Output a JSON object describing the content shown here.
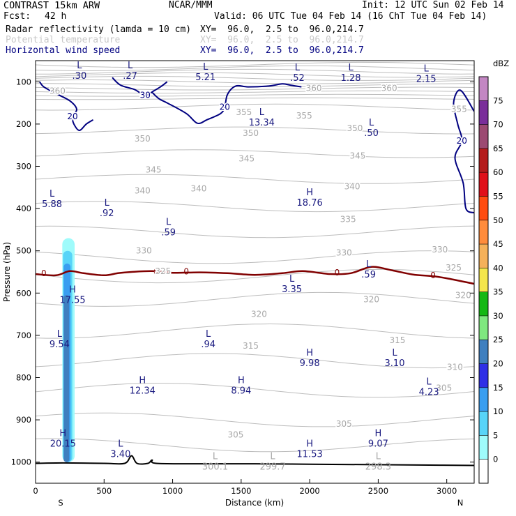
{
  "header": {
    "model": "CONTRAST 15km ARW",
    "institution": "NCAR/MMM",
    "init": "Init: 12 UTC Sun 02 Feb 14",
    "fcst_label": "Fcst:",
    "fcst_value": "42 h",
    "valid": "Valid: 06 UTC Tue 04 Feb 14 (16 ChT Tue 04 Feb 14)",
    "fields": [
      {
        "name": "Radar reflectivity (lamda = 10 cm)",
        "xy": "XY=  96.0,  2.5 to  96.0,214.7",
        "color": "#000000"
      },
      {
        "name": "Potential temperature",
        "xy": "XY=  96.0,  2.5 to  96.0,214.7",
        "color": "#c8c8c8"
      },
      {
        "name": "Horizontal wind speed",
        "xy": "XY=  96.0,  2.5 to  96.0,214.7",
        "color": "#000080"
      }
    ]
  },
  "chart_data": {
    "type": "cross-section",
    "xlabel": "Distance (km)",
    "ylabel": "Pressure (hPa)",
    "xlim": [
      0,
      3200
    ],
    "ylim": [
      1050,
      50
    ],
    "x_ticks": [
      0,
      500,
      1000,
      1500,
      2000,
      2500,
      3000
    ],
    "y_ticks": [
      100,
      200,
      300,
      400,
      500,
      600,
      700,
      800,
      900,
      1000
    ],
    "endpoints": {
      "left": "S",
      "right": "N"
    },
    "colorbar": {
      "unit": "dBZ",
      "labels": [
        "0",
        "5",
        "10",
        "15",
        "20",
        "25",
        "30",
        "35",
        "40",
        "45",
        "50",
        "55",
        "60",
        "65",
        "70",
        "75"
      ],
      "colors": [
        "#ffffff",
        "#9ffbfb",
        "#58d4f8",
        "#3a9ef0",
        "#2f2fe6",
        "#3f7fbf",
        "#7fe87f",
        "#14b814",
        "#f4e64c",
        "#f5b15a",
        "#ff8c3c",
        "#ff4c10",
        "#e0101a",
        "#b41c1c",
        "#9c4a72",
        "#7a2e9a",
        "#c387c3"
      ]
    },
    "freezing_line_label": "0",
    "freezing_line": [
      [
        0,
        555
      ],
      [
        150,
        558
      ],
      [
        250,
        548
      ],
      [
        350,
        553
      ],
      [
        500,
        558
      ],
      [
        600,
        553
      ],
      [
        700,
        550
      ],
      [
        850,
        548
      ],
      [
        1000,
        552
      ],
      [
        1200,
        551
      ],
      [
        1400,
        553
      ],
      [
        1600,
        557
      ],
      [
        1800,
        553
      ],
      [
        1950,
        548
      ],
      [
        2150,
        555
      ],
      [
        2300,
        553
      ],
      [
        2450,
        538
      ],
      [
        2600,
        546
      ],
      [
        2750,
        556
      ],
      [
        2900,
        560
      ],
      [
        3000,
        565
      ],
      [
        3200,
        578
      ]
    ],
    "reflectivity": [
      {
        "dbz": 5,
        "x": [
          195,
          285
        ],
        "p": [
          470,
          1000
        ]
      },
      {
        "dbz": 10,
        "x": [
          200,
          268
        ],
        "p": [
          500,
          1000
        ]
      },
      {
        "dbz": 15,
        "x": [
          205,
          255
        ],
        "p": [
          530,
          1000
        ]
      },
      {
        "dbz": 25,
        "x": [
          205,
          245
        ],
        "p": [
          605,
          1000
        ]
      }
    ],
    "wind_contours": [
      {
        "label": "20",
        "points": [
          [
            30,
            100
          ],
          [
            60,
            112
          ],
          [
            150,
            128
          ],
          [
            250,
            145
          ],
          [
            300,
            165
          ],
          [
            270,
            182
          ],
          [
            280,
            200
          ],
          [
            320,
            215
          ],
          [
            370,
            200
          ],
          [
            420,
            190
          ]
        ]
      },
      {
        "label": "30",
        "points": [
          [
            560,
            90
          ],
          [
            620,
            108
          ],
          [
            720,
            118
          ],
          [
            800,
            132
          ],
          [
            860,
            122
          ],
          [
            920,
            110
          ],
          [
            960,
            100
          ]
        ]
      },
      {
        "label": "20",
        "points": [
          [
            850,
            125
          ],
          [
            900,
            140
          ],
          [
            960,
            150
          ],
          [
            1100,
            175
          ],
          [
            1180,
            198
          ],
          [
            1250,
            190
          ],
          [
            1350,
            175
          ],
          [
            1380,
            160
          ],
          [
            1400,
            130
          ],
          [
            1460,
            110
          ],
          [
            1550,
            112
          ],
          [
            1700,
            110
          ],
          [
            1800,
            105
          ],
          [
            1860,
            108
          ],
          [
            1940,
            112
          ]
        ]
      },
      {
        "label": "20",
        "points": [
          [
            3200,
            170
          ],
          [
            3100,
            120
          ],
          [
            3050,
            150
          ],
          [
            3080,
            200
          ],
          [
            3110,
            240
          ],
          [
            3060,
            280
          ],
          [
            3120,
            340
          ],
          [
            3140,
            400
          ],
          [
            3200,
            410
          ]
        ]
      }
    ],
    "theta_labels": [
      {
        "v": "360",
        "x": 160,
        "p": 122
      },
      {
        "v": "360",
        "x": 2030,
        "p": 115
      },
      {
        "v": "360",
        "x": 2580,
        "p": 115
      },
      {
        "v": "355",
        "x": 1520,
        "p": 172
      },
      {
        "v": "355",
        "x": 1960,
        "p": 180
      },
      {
        "v": "355",
        "x": 3090,
        "p": 165
      },
      {
        "v": "350",
        "x": 780,
        "p": 235
      },
      {
        "v": "350",
        "x": 1570,
        "p": 222
      },
      {
        "v": "350",
        "x": 2330,
        "p": 210
      },
      {
        "v": "345",
        "x": 860,
        "p": 308
      },
      {
        "v": "345",
        "x": 1540,
        "p": 282
      },
      {
        "v": "345",
        "x": 2350,
        "p": 275
      },
      {
        "v": "340",
        "x": 780,
        "p": 358
      },
      {
        "v": "340",
        "x": 1190,
        "p": 353
      },
      {
        "v": "340",
        "x": 2310,
        "p": 348
      },
      {
        "v": "335",
        "x": 2280,
        "p": 425
      },
      {
        "v": "330",
        "x": 790,
        "p": 500
      },
      {
        "v": "330",
        "x": 2250,
        "p": 505
      },
      {
        "v": "330",
        "x": 2950,
        "p": 497
      },
      {
        "v": "325",
        "x": 930,
        "p": 548
      },
      {
        "v": "325",
        "x": 3050,
        "p": 540
      },
      {
        "v": "320",
        "x": 1630,
        "p": 650
      },
      {
        "v": "320",
        "x": 2450,
        "p": 615
      },
      {
        "v": "320",
        "x": 3120,
        "p": 605
      },
      {
        "v": "315",
        "x": 1570,
        "p": 725
      },
      {
        "v": "315",
        "x": 2640,
        "p": 712
      },
      {
        "v": "310",
        "x": 3060,
        "p": 775
      },
      {
        "v": "305",
        "x": 1460,
        "p": 935
      },
      {
        "v": "305",
        "x": 2250,
        "p": 910
      },
      {
        "v": "305",
        "x": 2980,
        "p": 825
      }
    ],
    "extrema": [
      {
        "t": "L",
        "v": ".30",
        "x": 320,
        "p": 75,
        "field": "wind"
      },
      {
        "t": "L",
        "v": ".27",
        "x": 690,
        "p": 75,
        "field": "wind"
      },
      {
        "t": "L",
        "v": "5.21",
        "x": 1240,
        "p": 78,
        "field": "wind"
      },
      {
        "t": "L",
        "v": ".52",
        "x": 1910,
        "p": 80,
        "field": "wind"
      },
      {
        "t": "L",
        "v": "1.28",
        "x": 2300,
        "p": 80,
        "field": "wind"
      },
      {
        "t": "L",
        "v": "2.15",
        "x": 2850,
        "p": 82,
        "field": "wind"
      },
      {
        "t": "L",
        "v": "13.34",
        "x": 1650,
        "p": 185,
        "field": "wind"
      },
      {
        "t": "L",
        "v": ".50",
        "x": 2450,
        "p": 210,
        "field": "wind"
      },
      {
        "t": "L",
        "v": "5.88",
        "x": 120,
        "p": 378,
        "field": "wind"
      },
      {
        "t": "L",
        "v": ".92",
        "x": 520,
        "p": 400,
        "field": "wind"
      },
      {
        "t": "H",
        "v": "18.76",
        "x": 2000,
        "p": 375,
        "field": "wind"
      },
      {
        "t": "L",
        "v": ".59",
        "x": 970,
        "p": 445,
        "field": "wind"
      },
      {
        "t": "L",
        "v": ".59",
        "x": 2430,
        "p": 545,
        "field": "wind"
      },
      {
        "t": "L",
        "v": "3.35",
        "x": 1870,
        "p": 580,
        "field": "wind"
      },
      {
        "t": "H",
        "v": "17.55",
        "x": 270,
        "p": 605,
        "field": "wind"
      },
      {
        "t": "L",
        "v": ".94",
        "x": 1260,
        "p": 710,
        "field": "wind"
      },
      {
        "t": "L",
        "v": "9.54",
        "x": 175,
        "p": 710,
        "field": "wind"
      },
      {
        "t": "H",
        "v": "9.98",
        "x": 2000,
        "p": 755,
        "field": "wind"
      },
      {
        "t": "L",
        "v": "3.10",
        "x": 2620,
        "p": 755,
        "field": "wind"
      },
      {
        "t": "H",
        "v": "12.34",
        "x": 780,
        "p": 820,
        "field": "wind"
      },
      {
        "t": "H",
        "v": "8.94",
        "x": 1500,
        "p": 820,
        "field": "wind"
      },
      {
        "t": "L",
        "v": "4.23",
        "x": 2870,
        "p": 823,
        "field": "wind"
      },
      {
        "t": "H",
        "v": "20.15",
        "x": 200,
        "p": 945,
        "field": "wind"
      },
      {
        "t": "L",
        "v": "3.40",
        "x": 620,
        "p": 970,
        "field": "wind"
      },
      {
        "t": "H",
        "v": "11.53",
        "x": 2000,
        "p": 970,
        "field": "wind"
      },
      {
        "t": "H",
        "v": "9.07",
        "x": 2500,
        "p": 945,
        "field": "wind"
      },
      {
        "t": "L",
        "v": "300.1",
        "x": 1310,
        "p": 1000,
        "field": "theta"
      },
      {
        "t": "L",
        "v": "299.7",
        "x": 1730,
        "p": 1000,
        "field": "theta"
      },
      {
        "t": "L",
        "v": "298.3",
        "x": 2500,
        "p": 1000,
        "field": "theta"
      }
    ],
    "terrain": [
      [
        0,
        1003
      ],
      [
        200,
        1002
      ],
      [
        500,
        1003
      ],
      [
        650,
        1003
      ],
      [
        700,
        985
      ],
      [
        740,
        1003
      ],
      [
        820,
        1003
      ],
      [
        850,
        995
      ],
      [
        880,
        1003
      ],
      [
        1200,
        1004
      ],
      [
        1600,
        1004
      ],
      [
        2000,
        1005
      ],
      [
        2400,
        1006
      ],
      [
        2800,
        1007
      ],
      [
        3200,
        1008
      ]
    ]
  }
}
